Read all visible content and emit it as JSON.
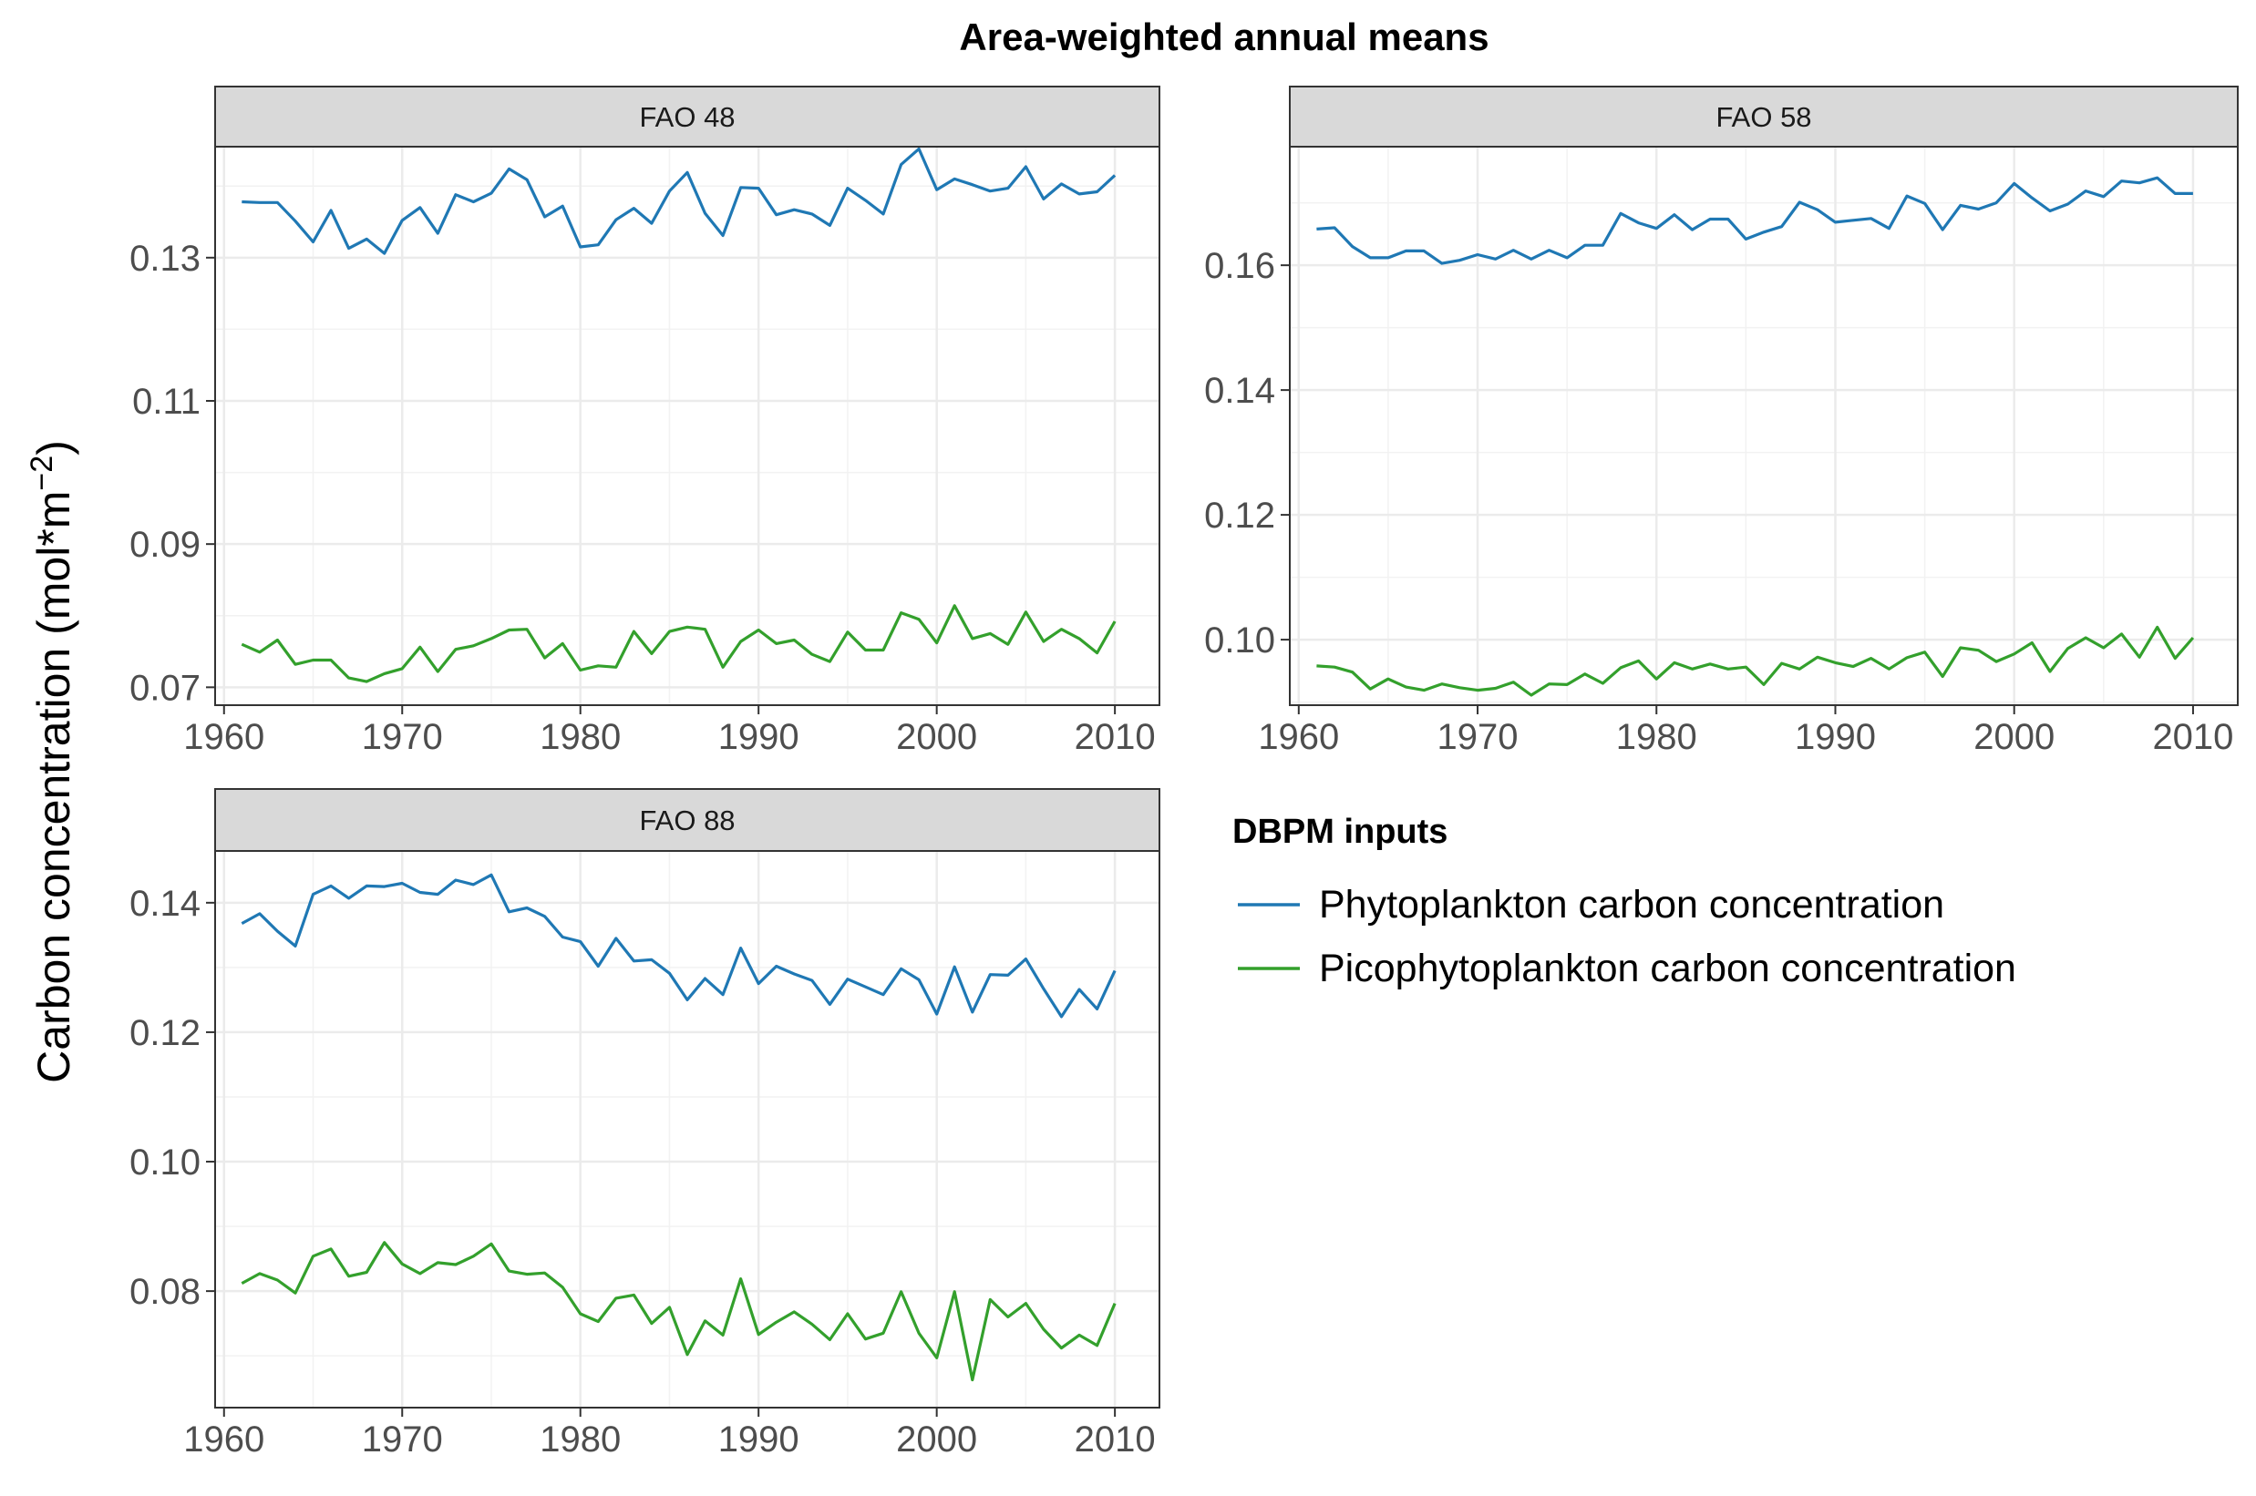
{
  "chart_data": {
    "type": "line",
    "title": "Area-weighted annual means",
    "ylabel": "Carbon concentration (mol*m",
    "ylabel_superscript": "−2",
    "ylabel_close": ")",
    "xlabel": "",
    "legend": {
      "title": "DBPM inputs",
      "placement": "right",
      "entries": [
        {
          "name": "Phytoplankton carbon concentration",
          "color": "#1f78b4"
        },
        {
          "name": "Picophytoplankton carbon concentration",
          "color": "#33a02c"
        }
      ]
    },
    "x_ticks": [
      "1960",
      "1970",
      "1980",
      "1990",
      "2000",
      "2010"
    ],
    "x": [
      1961,
      1962,
      1963,
      1964,
      1965,
      1966,
      1967,
      1968,
      1969,
      1970,
      1971,
      1972,
      1973,
      1974,
      1975,
      1976,
      1977,
      1978,
      1979,
      1980,
      1981,
      1982,
      1983,
      1984,
      1985,
      1986,
      1987,
      1988,
      1989,
      1990,
      1991,
      1992,
      1993,
      1994,
      1995,
      1996,
      1997,
      1998,
      1999,
      2000,
      2001,
      2002,
      2003,
      2004,
      2005,
      2006,
      2007,
      2008,
      2009,
      2010
    ],
    "panels": [
      {
        "label": "FAO 48",
        "xlim": [
          1959.5,
          2012.5
        ],
        "ylim": [
          0.0675,
          0.1455
        ],
        "y_ticks": [
          "0.07",
          "0.09",
          "0.11",
          "0.13"
        ],
        "y_tick_values": [
          0.07,
          0.09,
          0.11,
          0.13
        ],
        "series": [
          {
            "name": "Phytoplankton carbon concentration",
            "values": [
              0.1378,
              0.1377,
              0.1377,
              0.1351,
              0.1322,
              0.1366,
              0.1313,
              0.1326,
              0.1306,
              0.1352,
              0.137,
              0.1334,
              0.1388,
              0.1378,
              0.139,
              0.1424,
              0.1409,
              0.1357,
              0.1372,
              0.1315,
              0.1318,
              0.1353,
              0.1369,
              0.1348,
              0.1393,
              0.1419,
              0.1362,
              0.1331,
              0.1398,
              0.1397,
              0.136,
              0.1367,
              0.1361,
              0.1345,
              0.1397,
              0.138,
              0.1361,
              0.143,
              0.1452,
              0.1395,
              0.141,
              0.1402,
              0.1393,
              0.1397,
              0.1427,
              0.1382,
              0.1403,
              0.1389,
              0.1392,
              0.1415
            ]
          },
          {
            "name": "Picophytoplankton carbon concentration",
            "values": [
              0.076,
              0.0749,
              0.0766,
              0.0732,
              0.0738,
              0.0738,
              0.0713,
              0.0708,
              0.0719,
              0.0726,
              0.0756,
              0.0722,
              0.0753,
              0.0758,
              0.0768,
              0.078,
              0.0781,
              0.0741,
              0.0761,
              0.0724,
              0.073,
              0.0728,
              0.0778,
              0.0747,
              0.0778,
              0.0784,
              0.0781,
              0.0728,
              0.0764,
              0.078,
              0.0761,
              0.0766,
              0.0746,
              0.0736,
              0.0777,
              0.0752,
              0.0752,
              0.0804,
              0.0795,
              0.0762,
              0.0814,
              0.0768,
              0.0775,
              0.076,
              0.0805,
              0.0764,
              0.0781,
              0.0768,
              0.0748,
              0.0792
            ]
          }
        ]
      },
      {
        "label": "FAO 58",
        "xlim": [
          1959.5,
          2012.5
        ],
        "ylim": [
          0.0895,
          0.179
        ],
        "y_ticks": [
          "0.10",
          "0.12",
          "0.14",
          "0.16"
        ],
        "y_tick_values": [
          0.1,
          0.12,
          0.14,
          0.16
        ],
        "series": [
          {
            "name": "Phytoplankton carbon concentration",
            "values": [
              0.1658,
              0.166,
              0.163,
              0.1612,
              0.1612,
              0.1623,
              0.1623,
              0.1603,
              0.1608,
              0.1617,
              0.161,
              0.1624,
              0.161,
              0.1624,
              0.1612,
              0.1632,
              0.1632,
              0.1683,
              0.1668,
              0.1659,
              0.1681,
              0.1657,
              0.1674,
              0.1674,
              0.1642,
              0.1653,
              0.1662,
              0.1701,
              0.1689,
              0.1669,
              0.1672,
              0.1675,
              0.1659,
              0.1711,
              0.1699,
              0.1657,
              0.1696,
              0.169,
              0.17,
              0.1731,
              0.1708,
              0.1687,
              0.1698,
              0.1719,
              0.171,
              0.1735,
              0.1732,
              0.174,
              0.1715,
              0.1715
            ]
          },
          {
            "name": "Picophytoplankton carbon concentration",
            "values": [
              0.0958,
              0.0956,
              0.0948,
              0.0921,
              0.0937,
              0.0924,
              0.0919,
              0.0929,
              0.0923,
              0.0919,
              0.0922,
              0.0932,
              0.0911,
              0.0929,
              0.0928,
              0.0945,
              0.093,
              0.0955,
              0.0966,
              0.0937,
              0.0963,
              0.0953,
              0.0961,
              0.0953,
              0.0956,
              0.0928,
              0.0962,
              0.0953,
              0.0972,
              0.0963,
              0.0957,
              0.097,
              0.0953,
              0.0971,
              0.098,
              0.0941,
              0.0987,
              0.0983,
              0.0965,
              0.0977,
              0.0995,
              0.0949,
              0.0986,
              0.1003,
              0.0987,
              0.1009,
              0.0972,
              0.102,
              0.097,
              0.1003
            ]
          }
        ]
      },
      {
        "label": "FAO 88",
        "xlim": [
          1959.5,
          2012.5
        ],
        "ylim": [
          0.062,
          0.148
        ],
        "y_ticks": [
          "0.08",
          "0.10",
          "0.12",
          "0.14"
        ],
        "y_tick_values": [
          0.08,
          0.1,
          0.12,
          0.14
        ],
        "series": [
          {
            "name": "Phytoplankton carbon concentration",
            "values": [
              0.1368,
              0.1383,
              0.1356,
              0.1333,
              0.1413,
              0.1426,
              0.1407,
              0.1426,
              0.1425,
              0.143,
              0.1416,
              0.1413,
              0.1435,
              0.1428,
              0.1443,
              0.1386,
              0.1392,
              0.1379,
              0.1347,
              0.134,
              0.1302,
              0.1345,
              0.131,
              0.1312,
              0.1291,
              0.125,
              0.1283,
              0.1258,
              0.133,
              0.1275,
              0.1302,
              0.129,
              0.128,
              0.1243,
              0.1282,
              0.127,
              0.1258,
              0.1298,
              0.1281,
              0.1228,
              0.1301,
              0.1231,
              0.1289,
              0.1288,
              0.1313,
              0.1267,
              0.1224,
              0.1266,
              0.1236,
              0.1295
            ]
          },
          {
            "name": "Picophytoplankton carbon concentration",
            "values": [
              0.0812,
              0.0827,
              0.0817,
              0.0797,
              0.0854,
              0.0865,
              0.0823,
              0.0829,
              0.0875,
              0.0842,
              0.0827,
              0.0844,
              0.0841,
              0.0854,
              0.0873,
              0.0831,
              0.0826,
              0.0828,
              0.0806,
              0.0765,
              0.0753,
              0.0789,
              0.0794,
              0.075,
              0.0775,
              0.0702,
              0.0754,
              0.0732,
              0.0819,
              0.0733,
              0.0752,
              0.0768,
              0.0749,
              0.0725,
              0.0765,
              0.0726,
              0.0735,
              0.0799,
              0.0735,
              0.0697,
              0.0799,
              0.0663,
              0.0787,
              0.076,
              0.0781,
              0.0741,
              0.0712,
              0.0732,
              0.0716,
              0.0781
            ]
          }
        ]
      }
    ]
  }
}
